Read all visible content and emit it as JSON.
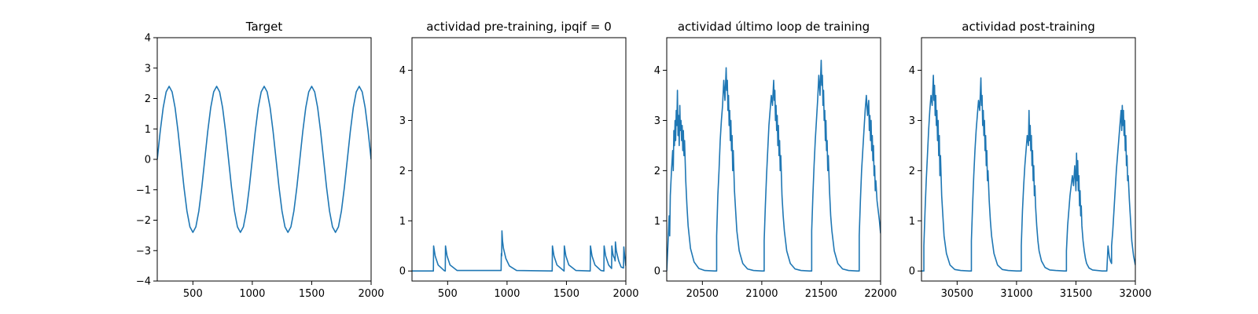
{
  "chart_data": [
    {
      "type": "line",
      "title": "Target",
      "xlabel": "",
      "ylabel": "",
      "xlim": [
        200,
        2000
      ],
      "ylim": [
        -4,
        4
      ],
      "xticks": [
        500,
        1000,
        1500,
        2000
      ],
      "yticks": [
        -4,
        -3,
        -2,
        -1,
        0,
        1,
        2,
        3,
        4
      ],
      "xtick_labels": [
        "500",
        "1000",
        "1500",
        "2000"
      ],
      "ytick_labels": [
        "−4",
        "−3",
        "−2",
        "−1",
        "0",
        "1",
        "2",
        "3",
        "4"
      ],
      "grid": false,
      "color": "#1f77b4",
      "series": [
        {
          "x": [
            200,
            225,
            250,
            275,
            300,
            325,
            350,
            375,
            400,
            425,
            450,
            475,
            500,
            525,
            550,
            575,
            600,
            625,
            650,
            675,
            700,
            725,
            750,
            775,
            800,
            825,
            850,
            875,
            900,
            925,
            950,
            975,
            1000,
            1025,
            1050,
            1075,
            1100,
            1125,
            1150,
            1175,
            1200,
            1225,
            1250,
            1275,
            1300,
            1325,
            1350,
            1375,
            1400,
            1425,
            1450,
            1475,
            1500,
            1525,
            1550,
            1575,
            1600,
            1625,
            1650,
            1675,
            1700,
            1725,
            1750,
            1775,
            1800,
            1825,
            1850,
            1875,
            1900,
            1925,
            1950,
            1975,
            2000
          ],
          "y": [
            0,
            0.92,
            1.7,
            2.22,
            2.4,
            2.22,
            1.7,
            0.92,
            0,
            -0.92,
            -1.7,
            -2.22,
            -2.4,
            -2.22,
            -1.7,
            -0.92,
            0,
            0.92,
            1.7,
            2.22,
            2.4,
            2.22,
            1.7,
            0.92,
            0,
            -0.92,
            -1.7,
            -2.22,
            -2.4,
            -2.22,
            -1.7,
            -0.92,
            0,
            0.92,
            1.7,
            2.22,
            2.4,
            2.22,
            1.7,
            0.92,
            0,
            -0.92,
            -1.7,
            -2.22,
            -2.4,
            -2.22,
            -1.7,
            -0.92,
            0,
            0.92,
            1.7,
            2.22,
            2.4,
            2.22,
            1.7,
            0.92,
            0,
            -0.92,
            -1.7,
            -2.22,
            -2.4,
            -2.22,
            -1.7,
            -0.92,
            0,
            0.92,
            1.7,
            2.22,
            2.4,
            2.22,
            1.7,
            0.92,
            0
          ]
        }
      ]
    },
    {
      "type": "line",
      "title": "actividad pre-training, ipqif = 0",
      "xlabel": "",
      "ylabel": "",
      "xlim": [
        200,
        2000
      ],
      "ylim": [
        -0.2,
        4.65
      ],
      "xticks": [
        500,
        1000,
        1500,
        2000
      ],
      "yticks": [
        0,
        1,
        2,
        3,
        4
      ],
      "xtick_labels": [
        "500",
        "1000",
        "1500",
        "2000"
      ],
      "ytick_labels": [
        "0",
        "1",
        "2",
        "3",
        "4"
      ],
      "grid": false,
      "color": "#1f77b4",
      "series": [
        {
          "x": [
            200,
            380,
            382,
            395,
            420,
            470,
            480,
            482,
            495,
            520,
            580,
            950,
            952,
            955,
            957,
            962,
            970,
            990,
            1020,
            1080,
            1380,
            1382,
            1395,
            1420,
            1475,
            1480,
            1482,
            1495,
            1520,
            1580,
            1700,
            1702,
            1715,
            1740,
            1790,
            1815,
            1817,
            1830,
            1855,
            1880,
            1882,
            1890,
            1895,
            1905,
            1910,
            1912,
            1920,
            1940,
            1960,
            1980,
            1983,
            1990,
            2000
          ],
          "y": [
            0,
            0,
            0.5,
            0.3,
            0.12,
            0.01,
            0,
            0.5,
            0.3,
            0.12,
            0.01,
            0.01,
            0.35,
            0.3,
            0.8,
            0.6,
            0.45,
            0.25,
            0.1,
            0.01,
            0,
            0.5,
            0.3,
            0.12,
            0.01,
            0,
            0.5,
            0.3,
            0.12,
            0.01,
            0,
            0.5,
            0.3,
            0.12,
            0.01,
            0,
            0.5,
            0.3,
            0.12,
            0.05,
            0.5,
            0.35,
            0.3,
            0.25,
            0.2,
            0.58,
            0.4,
            0.2,
            0.08,
            0.06,
            0.48,
            0.3,
            0.1
          ]
        }
      ]
    },
    {
      "type": "line",
      "title": "actividad último loop de training",
      "xlabel": "",
      "ylabel": "",
      "xlim": [
        20200,
        22000
      ],
      "ylim": [
        -0.2,
        4.65
      ],
      "xticks": [
        20500,
        21000,
        21500,
        22000
      ],
      "yticks": [
        0,
        1,
        2,
        3,
        4
      ],
      "xtick_labels": [
        "20500",
        "21000",
        "21500",
        "22000"
      ],
      "ytick_labels": [
        "0",
        "1",
        "2",
        "3",
        "4"
      ],
      "grid": false,
      "color": "#1f77b4",
      "series": [
        {
          "x": [
            20200,
            20210,
            20220,
            20225,
            20230,
            20240,
            20250,
            20255,
            20260,
            20265,
            20270,
            20275,
            20280,
            20285,
            20290,
            20295,
            20300,
            20305,
            20310,
            20315,
            20320,
            20325,
            20330,
            20335,
            20340,
            20345,
            20350,
            20360,
            20370,
            20380,
            20400,
            20430,
            20470,
            20520,
            20600,
            20620,
            20620,
            20630,
            20640,
            20650,
            20660,
            20670,
            20680,
            20690,
            20700,
            20705,
            20710,
            20715,
            20720,
            20725,
            20730,
            20735,
            20740,
            20745,
            20750,
            20755,
            20760,
            20770,
            20780,
            20790,
            20810,
            20840,
            20880,
            20930,
            21000,
            21020,
            21020,
            21030,
            21040,
            21050,
            21060,
            21070,
            21080,
            21090,
            21100,
            21105,
            21110,
            21115,
            21120,
            21125,
            21130,
            21135,
            21140,
            21145,
            21150,
            21155,
            21160,
            21170,
            21180,
            21190,
            21210,
            21240,
            21280,
            21330,
            21400,
            21420,
            21420,
            21430,
            21440,
            21450,
            21460,
            21470,
            21480,
            21490,
            21500,
            21505,
            21510,
            21515,
            21520,
            21525,
            21530,
            21535,
            21540,
            21545,
            21550,
            21555,
            21560,
            21570,
            21580,
            21590,
            21610,
            21640,
            21680,
            21730,
            21800,
            21820,
            21820,
            21830,
            21840,
            21850,
            21860,
            21870,
            21880,
            21890,
            21900,
            21905,
            21910,
            21915,
            21920,
            21925,
            21930,
            21935,
            21940,
            21945,
            21950,
            21955,
            21960,
            21970,
            21980,
            21990,
            22000
          ],
          "y": [
            0,
            0.5,
            1.1,
            0.7,
            1.5,
            2.0,
            2.4,
            2.0,
            2.8,
            2.5,
            3.0,
            2.6,
            3.2,
            2.9,
            3.6,
            2.7,
            3.1,
            2.5,
            3.3,
            2.8,
            3.0,
            2.6,
            2.9,
            2.4,
            2.8,
            2.3,
            2.6,
            1.8,
            1.3,
            0.9,
            0.45,
            0.18,
            0.05,
            0.01,
            0,
            0,
            0.7,
            1.5,
            2.0,
            2.6,
            3.0,
            3.3,
            3.8,
            3.4,
            4.05,
            3.6,
            3.8,
            3.2,
            3.5,
            2.9,
            3.2,
            2.6,
            3.0,
            2.4,
            2.7,
            2.0,
            2.4,
            1.6,
            1.2,
            0.8,
            0.4,
            0.15,
            0.04,
            0.01,
            0,
            0,
            0.6,
            1.3,
            1.9,
            2.4,
            2.9,
            3.2,
            3.5,
            3.3,
            3.8,
            3.4,
            3.6,
            3.0,
            3.3,
            2.8,
            3.1,
            2.5,
            2.9,
            2.3,
            2.6,
            2.0,
            2.3,
            1.5,
            1.1,
            0.8,
            0.4,
            0.15,
            0.04,
            0.01,
            0,
            0,
            0.8,
            1.5,
            2.1,
            2.6,
            3.0,
            3.4,
            3.9,
            3.5,
            4.2,
            3.7,
            3.9,
            3.3,
            3.6,
            3.0,
            3.2,
            2.6,
            3.0,
            2.4,
            2.6,
            2.0,
            2.3,
            1.6,
            1.1,
            0.8,
            0.4,
            0.15,
            0.04,
            0.01,
            0,
            0,
            0.7,
            1.4,
            2.0,
            2.4,
            2.8,
            3.2,
            3.5,
            3.1,
            3.4,
            2.8,
            3.1,
            2.6,
            3.0,
            2.4,
            2.7,
            2.2,
            2.5,
            1.9,
            2.1,
            1.6,
            1.8,
            1.4,
            1.2,
            1.0,
            0.75
          ]
        }
      ]
    },
    {
      "type": "line",
      "title": "actividad post-training",
      "xlabel": "",
      "ylabel": "",
      "xlim": [
        30200,
        32000
      ],
      "ylim": [
        -0.2,
        4.65
      ],
      "xticks": [
        30500,
        31000,
        31500,
        32000
      ],
      "yticks": [
        0,
        1,
        2,
        3,
        4
      ],
      "xtick_labels": [
        "30500",
        "31000",
        "31500",
        "32000"
      ],
      "ytick_labels": [
        "0",
        "1",
        "2",
        "3",
        "4"
      ],
      "grid": false,
      "color": "#1f77b4",
      "series": [
        {
          "x": [
            30200,
            30220,
            30220,
            30230,
            30240,
            30250,
            30260,
            30270,
            30280,
            30290,
            30300,
            30305,
            30310,
            30315,
            30320,
            30325,
            30330,
            30335,
            30340,
            30345,
            30350,
            30355,
            30360,
            30370,
            30380,
            30390,
            30410,
            30440,
            30480,
            30530,
            30600,
            30620,
            30620,
            30630,
            30640,
            30650,
            30660,
            30670,
            30680,
            30690,
            30700,
            30705,
            30710,
            30715,
            30720,
            30725,
            30730,
            30735,
            30740,
            30745,
            30750,
            30755,
            30760,
            30770,
            30780,
            30790,
            30810,
            30840,
            30880,
            30930,
            31000,
            31040,
            31040,
            31050,
            31060,
            31070,
            31080,
            31090,
            31100,
            31105,
            31110,
            31115,
            31120,
            31125,
            31130,
            31135,
            31140,
            31145,
            31150,
            31155,
            31160,
            31170,
            31180,
            31190,
            31210,
            31240,
            31280,
            31330,
            31400,
            31420,
            31420,
            31430,
            31440,
            31450,
            31460,
            31470,
            31480,
            31490,
            31500,
            31505,
            31510,
            31515,
            31520,
            31525,
            31530,
            31535,
            31540,
            31545,
            31550,
            31560,
            31570,
            31580,
            31590,
            31610,
            31640,
            31680,
            31720,
            31760,
            31760,
            31770,
            31780,
            31790,
            31800,
            31800,
            31810,
            31820,
            31830,
            31840,
            31850,
            31860,
            31870,
            31880,
            31885,
            31890,
            31895,
            31900,
            31905,
            31910,
            31915,
            31920,
            31925,
            31930,
            31935,
            31940,
            31950,
            31960,
            31970,
            31985,
            32000
          ],
          "y": [
            0,
            0,
            0.5,
            1.2,
            1.8,
            2.3,
            2.8,
            3.2,
            3.5,
            3.3,
            3.9,
            3.4,
            3.7,
            3.1,
            3.5,
            2.9,
            3.2,
            2.6,
            3.0,
            2.3,
            2.7,
            1.9,
            2.3,
            1.5,
            1.1,
            0.7,
            0.35,
            0.12,
            0.03,
            0.01,
            0,
            0,
            0.6,
            1.3,
            1.9,
            2.4,
            2.8,
            3.1,
            3.4,
            3.2,
            3.85,
            3.3,
            3.5,
            2.9,
            3.2,
            2.7,
            3.0,
            2.4,
            2.7,
            2.1,
            2.4,
            1.8,
            2.0,
            1.4,
            1.0,
            0.7,
            0.35,
            0.12,
            0.03,
            0.01,
            0,
            0,
            0.5,
            1.2,
            1.7,
            2.1,
            2.4,
            2.7,
            2.5,
            3.2,
            2.6,
            2.9,
            2.4,
            2.7,
            2.1,
            2.4,
            1.8,
            2.1,
            1.5,
            1.7,
            1.3,
            0.9,
            0.6,
            0.4,
            0.2,
            0.07,
            0.02,
            0.01,
            0,
            0,
            0.4,
            0.9,
            1.2,
            1.5,
            1.7,
            1.9,
            1.7,
            2.1,
            1.6,
            2.35,
            1.8,
            2.2,
            1.6,
            1.9,
            1.3,
            1.6,
            1.1,
            1.3,
            0.9,
            0.6,
            0.4,
            0.25,
            0.15,
            0.06,
            0.02,
            0.01,
            0,
            0,
            0,
            0.5,
            0.3,
            0.2,
            0.15,
            0.5,
            0.8,
            1.2,
            1.6,
            2.0,
            2.3,
            2.6,
            2.9,
            3.2,
            2.8,
            3.3,
            2.9,
            3.2,
            2.7,
            3.0,
            2.4,
            2.7,
            2.1,
            2.3,
            1.8,
            1.9,
            1.4,
            1.0,
            0.6,
            0.3,
            0.12
          ]
        }
      ]
    }
  ]
}
